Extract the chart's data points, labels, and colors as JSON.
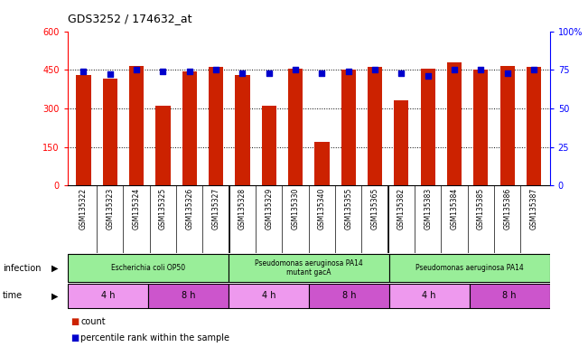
{
  "title": "GDS3252 / 174632_at",
  "samples": [
    "GSM135322",
    "GSM135323",
    "GSM135324",
    "GSM135325",
    "GSM135326",
    "GSM135327",
    "GSM135328",
    "GSM135329",
    "GSM135330",
    "GSM135340",
    "GSM135355",
    "GSM135365",
    "GSM135382",
    "GSM135383",
    "GSM135384",
    "GSM135385",
    "GSM135386",
    "GSM135387"
  ],
  "counts": [
    430,
    415,
    465,
    310,
    445,
    460,
    430,
    310,
    455,
    170,
    450,
    460,
    330,
    455,
    480,
    450,
    465,
    460
  ],
  "percentile_ranks": [
    74,
    72,
    75,
    74,
    74,
    75,
    73,
    73,
    75,
    73,
    74,
    75,
    73,
    71,
    75,
    75,
    73,
    75
  ],
  "ylim_left": [
    0,
    600
  ],
  "ylim_right": [
    0,
    100
  ],
  "yticks_left": [
    0,
    150,
    300,
    450,
    600
  ],
  "yticks_right": [
    0,
    25,
    50,
    75,
    100
  ],
  "bar_color": "#cc2200",
  "dot_color": "#0000cc",
  "infection_groups": [
    {
      "label": "Escherichia coli OP50",
      "start": 0,
      "end": 6,
      "color": "#99ee99"
    },
    {
      "label": "Pseudomonas aeruginosa PA14\nmutant gacA",
      "start": 6,
      "end": 12,
      "color": "#99ee99"
    },
    {
      "label": "Pseudomonas aeruginosa PA14",
      "start": 12,
      "end": 18,
      "color": "#99ee99"
    }
  ],
  "time_groups": [
    {
      "label": "4 h",
      "start": 0,
      "end": 3,
      "color": "#ee99ee"
    },
    {
      "label": "8 h",
      "start": 3,
      "end": 6,
      "color": "#cc55cc"
    },
    {
      "label": "4 h",
      "start": 6,
      "end": 9,
      "color": "#ee99ee"
    },
    {
      "label": "8 h",
      "start": 9,
      "end": 12,
      "color": "#cc55cc"
    },
    {
      "label": "4 h",
      "start": 12,
      "end": 15,
      "color": "#ee99ee"
    },
    {
      "label": "8 h",
      "start": 15,
      "end": 18,
      "color": "#cc55cc"
    }
  ],
  "infection_label": "infection",
  "time_label": "time",
  "legend_count": "count",
  "legend_pct": "percentile rank within the sample",
  "bg_color": "#ffffff",
  "tick_label_bg": "#cccccc",
  "group_separators": [
    5.5,
    11.5
  ]
}
